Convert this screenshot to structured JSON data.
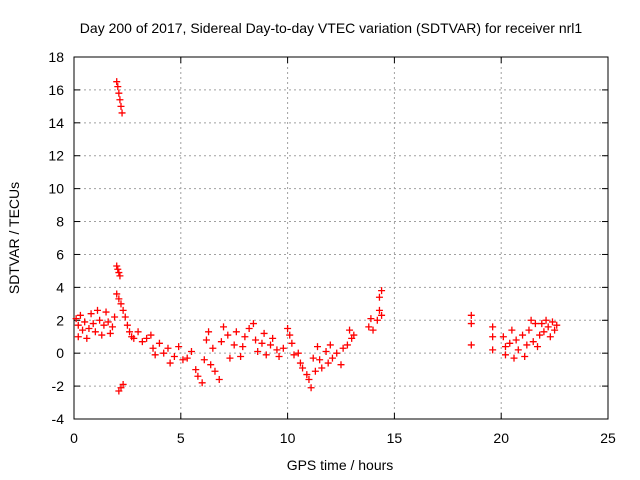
{
  "chart_data": {
    "type": "scatter",
    "title": "Day 200 of 2017, Sidereal Day-to-day VTEC variation (SDTVAR) for receiver nrl1",
    "xlabel": "GPS time / hours",
    "ylabel": "SDTVAR / TECUs",
    "xlim": [
      0,
      25
    ],
    "ylim": [
      -4,
      18
    ],
    "x_ticks": [
      0,
      5,
      10,
      15,
      20,
      25
    ],
    "y_ticks": [
      -4,
      -2,
      0,
      2,
      4,
      6,
      8,
      10,
      12,
      14,
      16,
      18
    ],
    "grid": true,
    "marker": "plus",
    "series": [
      {
        "name": "nrl1",
        "color": "#ff0000",
        "points": [
          [
            0.1,
            2.1
          ],
          [
            0.2,
            1.7
          ],
          [
            0.2,
            1.0
          ],
          [
            0.3,
            2.3
          ],
          [
            0.4,
            1.4
          ],
          [
            0.5,
            1.9
          ],
          [
            0.6,
            0.9
          ],
          [
            0.7,
            1.5
          ],
          [
            0.8,
            2.4
          ],
          [
            0.9,
            1.8
          ],
          [
            1.0,
            1.3
          ],
          [
            1.1,
            2.6
          ],
          [
            1.2,
            2.0
          ],
          [
            1.3,
            1.1
          ],
          [
            1.4,
            1.7
          ],
          [
            1.5,
            2.5
          ],
          [
            1.6,
            1.9
          ],
          [
            1.7,
            1.2
          ],
          [
            1.8,
            1.6
          ],
          [
            1.9,
            2.2
          ],
          [
            2.0,
            16.5
          ],
          [
            2.05,
            16.2
          ],
          [
            2.1,
            15.8
          ],
          [
            2.15,
            15.4
          ],
          [
            2.2,
            15.0
          ],
          [
            2.25,
            14.6
          ],
          [
            2.0,
            5.3
          ],
          [
            2.05,
            5.1
          ],
          [
            2.1,
            4.9
          ],
          [
            2.15,
            4.7
          ],
          [
            2.0,
            3.6
          ],
          [
            2.1,
            3.3
          ],
          [
            2.2,
            3.0
          ],
          [
            2.3,
            2.6
          ],
          [
            2.4,
            2.2
          ],
          [
            2.5,
            1.7
          ],
          [
            2.6,
            1.3
          ],
          [
            2.7,
            1.0
          ],
          [
            2.1,
            -2.3
          ],
          [
            2.2,
            -2.1
          ],
          [
            2.3,
            -1.9
          ],
          [
            2.8,
            0.9
          ],
          [
            3.0,
            1.3
          ],
          [
            3.2,
            0.7
          ],
          [
            3.4,
            0.9
          ],
          [
            3.6,
            1.1
          ],
          [
            3.7,
            0.3
          ],
          [
            3.8,
            -0.1
          ],
          [
            4.0,
            0.6
          ],
          [
            4.2,
            0.0
          ],
          [
            4.4,
            0.3
          ],
          [
            4.5,
            -0.6
          ],
          [
            4.7,
            -0.2
          ],
          [
            4.9,
            0.4
          ],
          [
            5.1,
            -0.4
          ],
          [
            5.3,
            -0.3
          ],
          [
            5.5,
            0.1
          ],
          [
            5.7,
            -1.0
          ],
          [
            5.8,
            -1.4
          ],
          [
            6.0,
            -1.8
          ],
          [
            6.1,
            -0.4
          ],
          [
            6.2,
            0.8
          ],
          [
            6.3,
            1.3
          ],
          [
            6.4,
            -0.7
          ],
          [
            6.5,
            0.3
          ],
          [
            6.6,
            -1.1
          ],
          [
            6.8,
            -1.6
          ],
          [
            6.9,
            0.7
          ],
          [
            7.0,
            1.6
          ],
          [
            7.2,
            1.1
          ],
          [
            7.3,
            -0.3
          ],
          [
            7.5,
            0.5
          ],
          [
            7.6,
            1.3
          ],
          [
            7.8,
            -0.2
          ],
          [
            7.9,
            0.4
          ],
          [
            8.0,
            1.0
          ],
          [
            8.2,
            1.5
          ],
          [
            8.4,
            1.8
          ],
          [
            8.5,
            0.8
          ],
          [
            8.6,
            0.1
          ],
          [
            8.8,
            0.6
          ],
          [
            8.9,
            1.2
          ],
          [
            9.0,
            -0.1
          ],
          [
            9.2,
            0.5
          ],
          [
            9.3,
            0.9
          ],
          [
            9.5,
            0.2
          ],
          [
            9.6,
            -0.2
          ],
          [
            9.8,
            0.3
          ],
          [
            10.0,
            1.5
          ],
          [
            10.1,
            1.1
          ],
          [
            10.2,
            0.6
          ],
          [
            10.3,
            -0.1
          ],
          [
            10.5,
            0.0
          ],
          [
            10.6,
            -0.6
          ],
          [
            10.7,
            -0.9
          ],
          [
            10.9,
            -1.3
          ],
          [
            11.0,
            -1.6
          ],
          [
            11.1,
            -2.1
          ],
          [
            11.2,
            -0.3
          ],
          [
            11.3,
            -1.1
          ],
          [
            11.4,
            0.4
          ],
          [
            11.5,
            -0.4
          ],
          [
            11.6,
            -0.9
          ],
          [
            11.8,
            0.1
          ],
          [
            11.9,
            -0.6
          ],
          [
            12.0,
            0.5
          ],
          [
            12.1,
            -0.3
          ],
          [
            12.3,
            0.0
          ],
          [
            12.5,
            -0.7
          ],
          [
            12.6,
            0.3
          ],
          [
            12.8,
            0.5
          ],
          [
            12.9,
            1.4
          ],
          [
            13.0,
            0.9
          ],
          [
            13.1,
            1.1
          ],
          [
            13.8,
            1.6
          ],
          [
            13.9,
            2.1
          ],
          [
            14.0,
            1.4
          ],
          [
            14.2,
            2.0
          ],
          [
            14.3,
            2.6
          ],
          [
            14.3,
            3.4
          ],
          [
            14.4,
            3.8
          ],
          [
            14.4,
            2.3
          ],
          [
            18.6,
            2.3
          ],
          [
            18.6,
            1.8
          ],
          [
            18.6,
            0.5
          ],
          [
            19.6,
            1.6
          ],
          [
            19.6,
            1.0
          ],
          [
            19.6,
            0.2
          ],
          [
            20.1,
            1.0
          ],
          [
            20.2,
            0.4
          ],
          [
            20.2,
            -0.1
          ],
          [
            20.4,
            0.6
          ],
          [
            20.5,
            1.4
          ],
          [
            20.6,
            -0.3
          ],
          [
            20.7,
            0.8
          ],
          [
            20.8,
            0.2
          ],
          [
            21.0,
            1.1
          ],
          [
            21.1,
            -0.2
          ],
          [
            21.2,
            0.5
          ],
          [
            21.3,
            1.4
          ],
          [
            21.4,
            2.0
          ],
          [
            21.5,
            0.7
          ],
          [
            21.6,
            1.8
          ],
          [
            21.7,
            0.4
          ],
          [
            21.8,
            1.1
          ],
          [
            21.9,
            1.8
          ],
          [
            22.0,
            1.3
          ],
          [
            22.1,
            2.0
          ],
          [
            22.2,
            1.6
          ],
          [
            22.3,
            1.0
          ],
          [
            22.4,
            1.9
          ],
          [
            22.5,
            1.4
          ],
          [
            22.6,
            1.7
          ]
        ]
      }
    ]
  }
}
